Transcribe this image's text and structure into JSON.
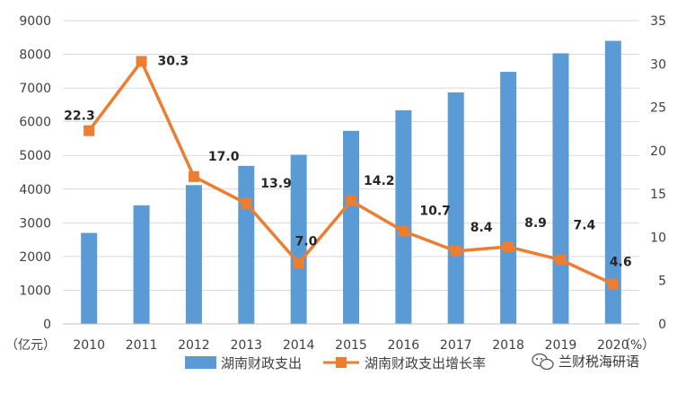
{
  "chart_data": {
    "type": "bar+line",
    "categories": [
      "2010",
      "2011",
      "2012",
      "2013",
      "2014",
      "2015",
      "2016",
      "2017",
      "2018",
      "2019",
      "2020"
    ],
    "series": [
      {
        "name": "湖南财政支出",
        "type": "bar",
        "axis": "left",
        "color": "#5B9BD5",
        "values": [
          2700,
          3520,
          4120,
          4690,
          5020,
          5730,
          6340,
          6870,
          7480,
          8030,
          8400
        ]
      },
      {
        "name": "湖南财政支出增长率",
        "type": "line",
        "axis": "right",
        "color": "#ED7D31",
        "values": [
          22.3,
          30.3,
          17.0,
          13.9,
          7.0,
          14.2,
          10.7,
          8.4,
          8.9,
          7.4,
          4.6
        ],
        "labels": [
          "22.3",
          "30.3",
          "17.0",
          "13.9",
          "7.0",
          "14.2",
          "10.7",
          "8.4",
          "8.9",
          "7.4",
          "4.6"
        ]
      }
    ],
    "y_left": {
      "unit": "（亿元）",
      "min": 0,
      "max": 9000,
      "ticks": [
        0,
        1000,
        2000,
        3000,
        4000,
        5000,
        6000,
        7000,
        8000,
        9000
      ]
    },
    "y_right": {
      "unit": "（%）",
      "min": 0,
      "max": 35,
      "ticks": [
        0,
        5,
        10,
        15,
        20,
        25,
        30,
        35
      ]
    },
    "grid": true,
    "legend_position": "bottom-center"
  },
  "watermark": {
    "text": "兰财税海研语",
    "icon": "wechat-icon"
  }
}
